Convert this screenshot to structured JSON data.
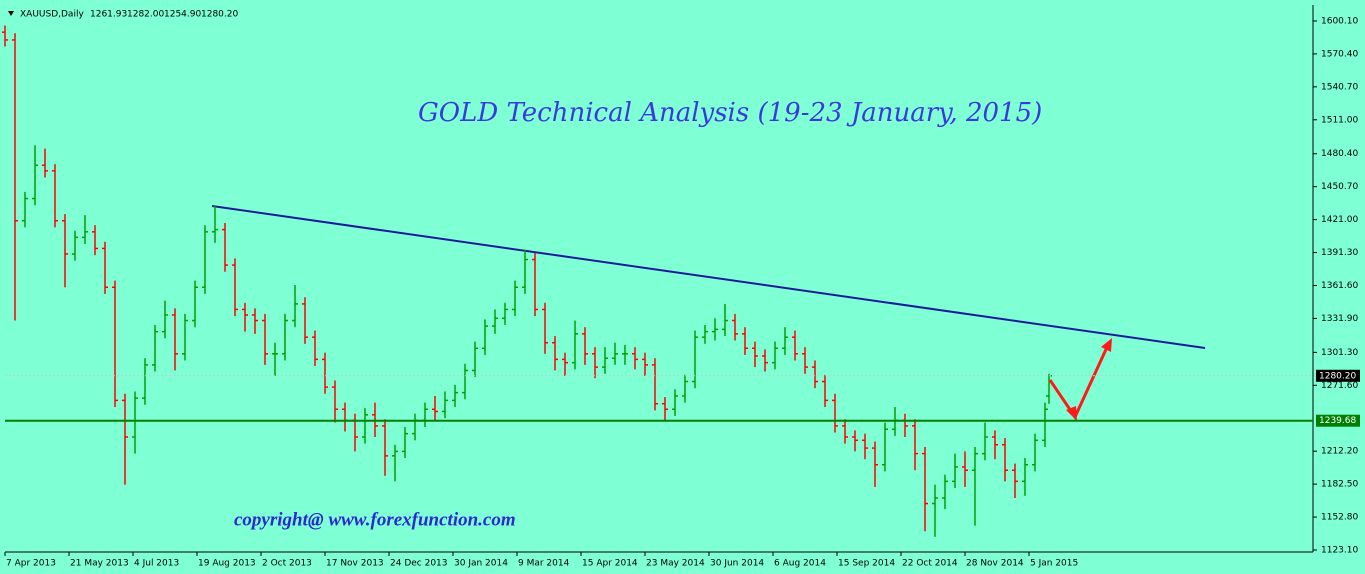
{
  "chart_data": {
    "type": "ohlc",
    "symbol": "XAUUSD,Daily",
    "header_values": [
      {
        "value": 1261.93,
        "label": "1261.93"
      },
      {
        "value": 1282,
        "label": "1282.00"
      },
      {
        "value": 1254.9,
        "label": "1254.90"
      },
      {
        "value": 1280.2,
        "label": "1280.20"
      }
    ],
    "title": "GOLD  Technical Analysis (19-23 January, 2015)",
    "watermark": "copyright@ www.forexfunction.com",
    "background": "#7fffd4",
    "up_color": "#00a000",
    "down_color": "#ff0000",
    "x": [
      0,
      5,
      10,
      15,
      20,
      25,
      30,
      35,
      40,
      45,
      50,
      55,
      60,
      65,
      70,
      75,
      80,
      85,
      90,
      95,
      100,
      105,
      110,
      115,
      120,
      125,
      130,
      135,
      140,
      145,
      150,
      155,
      160,
      165,
      170,
      175,
      180,
      185,
      190,
      195,
      200,
      205,
      210,
      215,
      220,
      225,
      230,
      235,
      240,
      245,
      250,
      255,
      260,
      265,
      270,
      275,
      280,
      285,
      290,
      295,
      300,
      305,
      310,
      315,
      320,
      325,
      330,
      335,
      340,
      345,
      350,
      355,
      360,
      365,
      370,
      375,
      380,
      385,
      390,
      395,
      400,
      405,
      410,
      415,
      420,
      425,
      430,
      435,
      440,
      445,
      450,
      455,
      460,
      465,
      470,
      475,
      480,
      485,
      490,
      495,
      500,
      505,
      510,
      515,
      520,
      522
    ],
    "open": [
      1590,
      1583,
      1420,
      1440,
      1470,
      1465,
      1420,
      1390,
      1405,
      1410,
      1395,
      1360,
      1258,
      1225,
      1260,
      1290,
      1320,
      1335,
      1300,
      1330,
      1360,
      1410,
      1412,
      1380,
      1340,
      1335,
      1330,
      1300,
      1300,
      1330,
      1345,
      1315,
      1295,
      1270,
      1250,
      1240,
      1225,
      1245,
      1235,
      1208,
      1212,
      1228,
      1240,
      1250,
      1248,
      1258,
      1265,
      1285,
      1305,
      1325,
      1332,
      1340,
      1360,
      1385,
      1340,
      1310,
      1295,
      1292,
      1318,
      1300,
      1288,
      1296,
      1300,
      1300,
      1295,
      1290,
      1255,
      1250,
      1262,
      1275,
      1315,
      1320,
      1322,
      1330,
      1318,
      1305,
      1298,
      1292,
      1305,
      1315,
      1300,
      1288,
      1275,
      1258,
      1235,
      1225,
      1222,
      1215,
      1200,
      1232,
      1240,
      1235,
      1210,
      1165,
      1170,
      1185,
      1198,
      1195,
      1210,
      1225,
      1218,
      1195,
      1185,
      1200,
      1222,
      1261.93
    ],
    "high": [
      1596,
      1589,
      1446,
      1488,
      1485,
      1471,
      1426,
      1411,
      1425,
      1416,
      1401,
      1366,
      1264,
      1266,
      1296,
      1326,
      1348,
      1341,
      1336,
      1366,
      1416,
      1434,
      1418,
      1386,
      1346,
      1341,
      1336,
      1310,
      1336,
      1362,
      1351,
      1321,
      1301,
      1276,
      1256,
      1246,
      1251,
      1256,
      1241,
      1218,
      1234,
      1246,
      1256,
      1262,
      1266,
      1272,
      1291,
      1311,
      1331,
      1340,
      1346,
      1366,
      1394,
      1391,
      1346,
      1316,
      1301,
      1330,
      1324,
      1306,
      1306,
      1310,
      1308,
      1306,
      1301,
      1296,
      1261,
      1268,
      1281,
      1321,
      1326,
      1332,
      1345,
      1336,
      1324,
      1311,
      1304,
      1311,
      1324,
      1321,
      1306,
      1294,
      1281,
      1264,
      1241,
      1231,
      1228,
      1221,
      1238,
      1252,
      1246,
      1241,
      1216,
      1182,
      1191,
      1210,
      1212,
      1216,
      1238,
      1231,
      1224,
      1201,
      1206,
      1228,
      1256,
      1282
    ],
    "low": [
      1577,
      1330,
      1414,
      1434,
      1459,
      1414,
      1360,
      1384,
      1399,
      1389,
      1354,
      1252,
      1182,
      1210,
      1254,
      1284,
      1314,
      1285,
      1294,
      1324,
      1354,
      1400,
      1374,
      1334,
      1320,
      1318,
      1290,
      1280,
      1294,
      1324,
      1309,
      1289,
      1264,
      1238,
      1230,
      1212,
      1219,
      1225,
      1190,
      1185,
      1206,
      1222,
      1234,
      1240,
      1242,
      1252,
      1259,
      1279,
      1299,
      1318,
      1326,
      1334,
      1354,
      1334,
      1300,
      1285,
      1280,
      1286,
      1290,
      1278,
      1282,
      1290,
      1290,
      1286,
      1280,
      1249,
      1240,
      1244,
      1256,
      1269,
      1309,
      1312,
      1316,
      1312,
      1299,
      1288,
      1284,
      1286,
      1299,
      1294,
      1282,
      1269,
      1252,
      1229,
      1219,
      1212,
      1205,
      1180,
      1194,
      1226,
      1225,
      1195,
      1140,
      1135,
      1160,
      1179,
      1180,
      1145,
      1204,
      1205,
      1185,
      1170,
      1172,
      1194,
      1216,
      1254.9
    ],
    "close": [
      1583,
      1420,
      1440,
      1470,
      1465,
      1420,
      1390,
      1405,
      1410,
      1395,
      1360,
      1258,
      1225,
      1260,
      1290,
      1320,
      1335,
      1300,
      1330,
      1360,
      1410,
      1412,
      1380,
      1340,
      1335,
      1330,
      1300,
      1300,
      1330,
      1345,
      1315,
      1295,
      1270,
      1250,
      1240,
      1225,
      1245,
      1235,
      1208,
      1212,
      1228,
      1240,
      1250,
      1248,
      1258,
      1265,
      1285,
      1305,
      1325,
      1332,
      1340,
      1360,
      1385,
      1340,
      1310,
      1295,
      1292,
      1318,
      1300,
      1288,
      1296,
      1300,
      1300,
      1295,
      1290,
      1255,
      1250,
      1262,
      1275,
      1315,
      1320,
      1322,
      1330,
      1318,
      1305,
      1298,
      1292,
      1305,
      1315,
      1300,
      1288,
      1275,
      1258,
      1235,
      1225,
      1222,
      1215,
      1200,
      1232,
      1240,
      1235,
      1210,
      1165,
      1170,
      1185,
      1198,
      1195,
      1210,
      1225,
      1218,
      1195,
      1185,
      1200,
      1222,
      1250,
      1280.2
    ],
    "xlim": [
      0,
      654
    ],
    "xticks": [
      {
        "value": 0,
        "label": "7 Apr 2013"
      },
      {
        "value": 32,
        "label": "21 May 2013"
      },
      {
        "value": 64,
        "label": "4 Jul 2013"
      },
      {
        "value": 96,
        "label": "19 Aug 2013"
      },
      {
        "value": 128,
        "label": "2 Oct 2013"
      },
      {
        "value": 160,
        "label": "17 Nov 2013"
      },
      {
        "value": 192,
        "label": "24 Dec 2013"
      },
      {
        "value": 224,
        "label": "30 Jan 2014"
      },
      {
        "value": 256,
        "label": "9 Mar 2014"
      },
      {
        "value": 288,
        "label": "15 Apr 2014"
      },
      {
        "value": 320,
        "label": "23 May 2014"
      },
      {
        "value": 352,
        "label": "30 Jun 2014"
      },
      {
        "value": 384,
        "label": "6 Aug 2014"
      },
      {
        "value": 416,
        "label": "15 Sep 2014"
      },
      {
        "value": 448,
        "label": "22 Oct 2014"
      },
      {
        "value": 480,
        "label": "28 Nov 2014"
      },
      {
        "value": 512,
        "label": "5 Jan 2015"
      }
    ],
    "ylim": [
      1121.3,
      1614.5
    ],
    "yticks": [
      {
        "value": 1600.1,
        "label": "1600.10"
      },
      {
        "value": 1570.4,
        "label": "1570.40"
      },
      {
        "value": 1540.7,
        "label": "1540.70"
      },
      {
        "value": 1511,
        "label": "1511.00"
      },
      {
        "value": 1480.4,
        "label": "1480.40"
      },
      {
        "value": 1450.7,
        "label": "1450.70"
      },
      {
        "value": 1421,
        "label": "1421.00"
      },
      {
        "value": 1391.3,
        "label": "1391.30"
      },
      {
        "value": 1361.6,
        "label": "1361.60"
      },
      {
        "value": 1331.9,
        "label": "1331.90"
      },
      {
        "value": 1301.3,
        "label": "1301.30"
      },
      {
        "value": 1271.6,
        "label": "1271.60"
      },
      {
        "value": 1212.2,
        "label": "1212.20"
      },
      {
        "value": 1182.5,
        "label": "1182.50"
      },
      {
        "value": 1152.8,
        "label": "1152.80"
      },
      {
        "value": 1123.1,
        "label": "1123.10"
      }
    ],
    "last_price": {
      "value": 1280.2,
      "label": "1280.20"
    },
    "support": {
      "value": 1239.68,
      "label": "1239.68"
    }
  }
}
